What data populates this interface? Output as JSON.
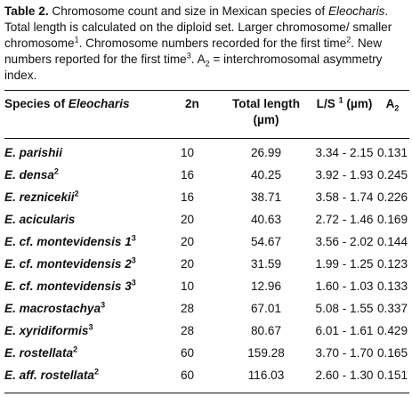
{
  "caption": {
    "label": "Table 2.",
    "p1": " Chromosome count and size in Mexican species of ",
    "genus": "Eleocharis",
    "p2": ". Total length is calculated on the diploid set. Larger chromosome/ smaller chromosome",
    "sup1": "1",
    "p3": ". Chromosome numbers recorded for the first time",
    "sup2": "2",
    "p4": ". New numbers reported for the first time",
    "sup3": "3",
    "p5": ". A",
    "sub2": "2",
    "p6": " = interchromosomal asymmetry index."
  },
  "header": {
    "species_prefix": "Species of ",
    "species_genus": "Eleocharis",
    "chrom": "2n",
    "total_length_l1": "Total length",
    "total_length_l2": "(µm)",
    "ls_a": "L/S ",
    "ls_sup": "1",
    "ls_b": " (µm)",
    "a2_a": "A",
    "a2_sub": "2"
  },
  "rows": [
    {
      "species": "E. parishii",
      "sup": "",
      "n2": "10",
      "total": "26.99",
      "ls": "3.34 - 2.15",
      "a2": "0.131"
    },
    {
      "species": "E. densa",
      "sup": "2",
      "n2": "16",
      "total": "40.25",
      "ls": "3.92 - 1.93",
      "a2": "0.245"
    },
    {
      "species": "E. reznicekii",
      "sup": "2",
      "n2": "16",
      "total": "38.71",
      "ls": "3.58 - 1.74",
      "a2": "0.226"
    },
    {
      "species": "E. acicularis",
      "sup": "",
      "n2": "20",
      "total": "40.63",
      "ls": "2.72 - 1.46",
      "a2": "0.169"
    },
    {
      "species": "E. cf. montevidensis 1",
      "sup": "3",
      "n2": "20",
      "total": "54.67",
      "ls": "3.56 - 2.02",
      "a2": "0.144"
    },
    {
      "species": "E. cf. montevidensis 2",
      "sup": "3",
      "n2": "20",
      "total": "31.59",
      "ls": "1.99 - 1.25",
      "a2": "0.123"
    },
    {
      "species": "E. cf. montevidensis 3",
      "sup": "3",
      "n2": "10",
      "total": "12.96",
      "ls": "1.60 - 1.03",
      "a2": "0.133"
    },
    {
      "species": "E. macrostachya",
      "sup": "3",
      "n2": "28",
      "total": "67.01",
      "ls": "5.08 - 1.55",
      "a2": "0.337"
    },
    {
      "species": "E. xyridiformis",
      "sup": "3",
      "n2": "28",
      "total": "80.67",
      "ls": "6.01 - 1.61",
      "a2": "0.429"
    },
    {
      "species": "E. rostellata",
      "sup": "2",
      "n2": "60",
      "total": "159.28",
      "ls": "3.70 - 1.70",
      "a2": "0.165"
    },
    {
      "species": "E. aff. rostellata",
      "sup": "2",
      "n2": "60",
      "total": "116.03",
      "ls": "2.60 - 1.30",
      "a2": "0.151"
    }
  ]
}
